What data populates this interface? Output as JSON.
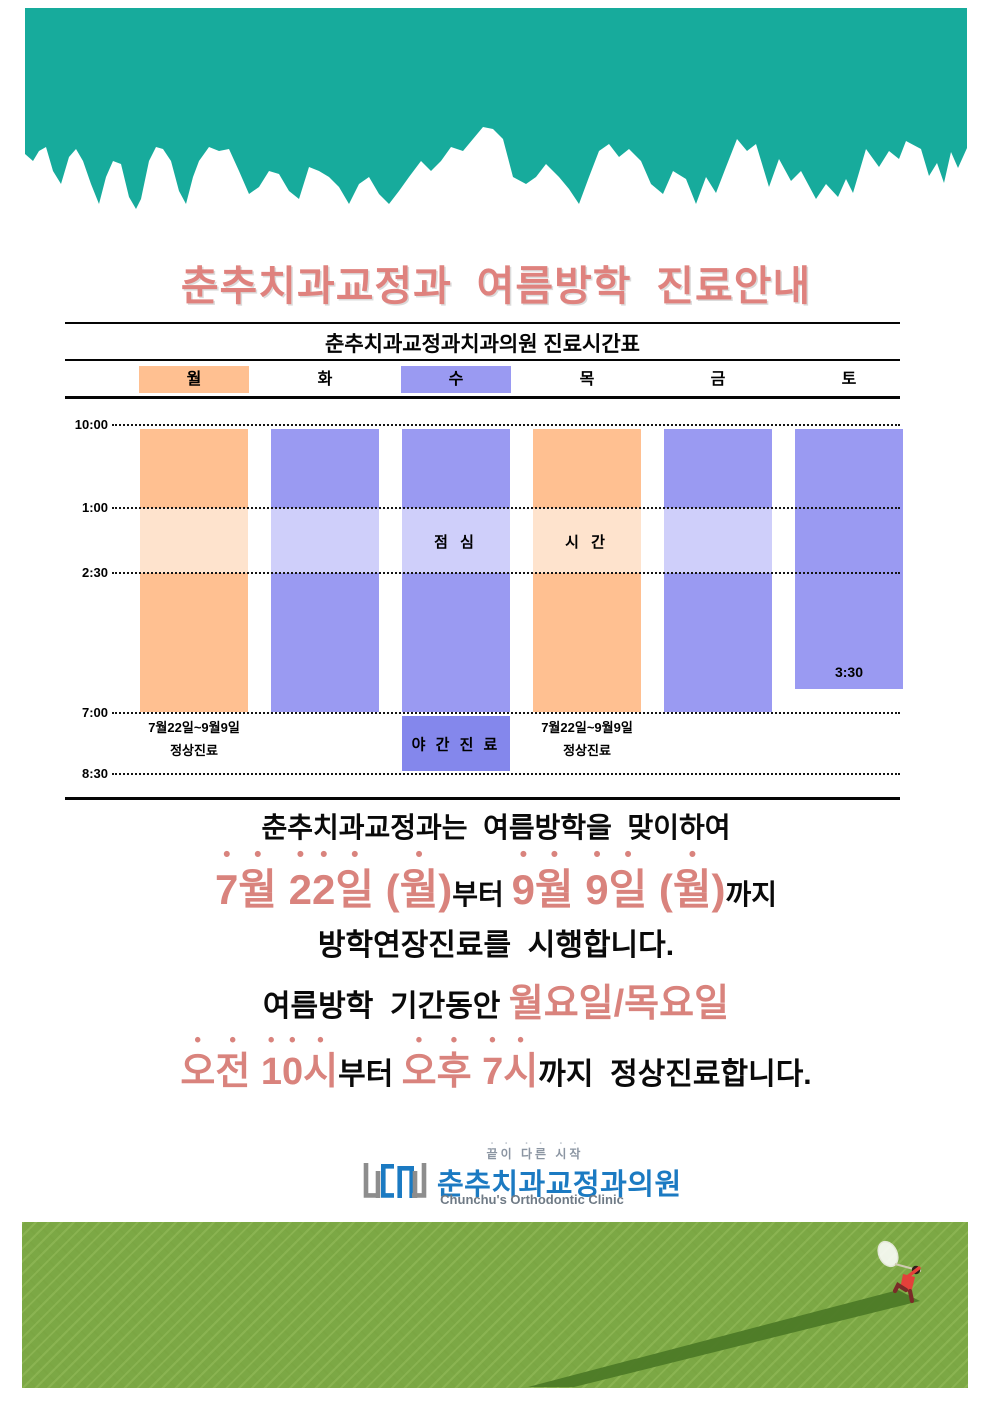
{
  "page": {
    "main_title": "춘추치과교정과  여름방학  진료안내"
  },
  "schedule": {
    "table_title": "춘추치과교정과치과의원 진료시간표",
    "time_labels": [
      "10:00",
      "1:00",
      "2:30",
      "7:00",
      "8:30"
    ],
    "lunch_label_left": "점  심",
    "lunch_label_right": "시  간",
    "columns": [
      {
        "day": "월",
        "theme": "orange",
        "highlight": "orange",
        "segments": [
          {
            "from": "10:00",
            "to": "1:00",
            "type": "work"
          },
          {
            "from": "1:00",
            "to": "2:30",
            "type": "lunch"
          },
          {
            "from": "2:30",
            "to": "7:00",
            "type": "work"
          }
        ],
        "note": [
          "7월22일~9월9일",
          "정상진료"
        ]
      },
      {
        "day": "화",
        "theme": "purple",
        "highlight": "",
        "segments": [
          {
            "from": "10:00",
            "to": "1:00",
            "type": "work"
          },
          {
            "from": "1:00",
            "to": "2:30",
            "type": "lunch"
          },
          {
            "from": "2:30",
            "to": "7:00",
            "type": "work"
          }
        ]
      },
      {
        "day": "수",
        "theme": "purple",
        "highlight": "purple",
        "segments": [
          {
            "from": "10:00",
            "to": "1:00",
            "type": "work"
          },
          {
            "from": "1:00",
            "to": "2:30",
            "type": "lunch"
          },
          {
            "from": "2:30",
            "to": "7:00",
            "type": "work"
          },
          {
            "from": "7:00",
            "to": "8:30",
            "type": "night",
            "label": "야 간 진 료"
          }
        ]
      },
      {
        "day": "목",
        "theme": "orange",
        "highlight": "",
        "segments": [
          {
            "from": "10:00",
            "to": "1:00",
            "type": "work"
          },
          {
            "from": "1:00",
            "to": "2:30",
            "type": "lunch"
          },
          {
            "from": "2:30",
            "to": "7:00",
            "type": "work"
          }
        ],
        "note": [
          "7월22일~9월9일",
          "정상진료"
        ]
      },
      {
        "day": "금",
        "theme": "purple",
        "highlight": "",
        "segments": [
          {
            "from": "10:00",
            "to": "1:00",
            "type": "work"
          },
          {
            "from": "1:00",
            "to": "2:30",
            "type": "lunch"
          },
          {
            "from": "2:30",
            "to": "7:00",
            "type": "work"
          }
        ]
      },
      {
        "day": "토",
        "theme": "purple",
        "highlight": "",
        "segments": [
          {
            "from": "10:00",
            "to": "3:30",
            "type": "work",
            "end_label": "3:30"
          }
        ]
      }
    ]
  },
  "announcement": {
    "line1": "춘추치과교정과는  여름방학을  맞이하여",
    "line2_pink1": "7월 22일 (월)",
    "line2_black1": "부터 ",
    "line2_pink2": "9월 9일 (월)",
    "line2_black2": "까지",
    "line3": "방학연장진료를  시행합니다.",
    "line4_black": "여름방학  기간동안 ",
    "line4_pink": "월요일/목요일",
    "line5_pink1": "오전 10시",
    "line5_black1": "부터 ",
    "line5_pink2": "오후 7시",
    "line5_black2": "까지  정상진료합니다."
  },
  "footer": {
    "slogan": "끝이 다른 시작",
    "clinic_name_ko": "춘추치과교정과의원",
    "clinic_name_en": "Chunchu's Orthodontic Clinic"
  },
  "colors": {
    "teal_banner": "#17ab9c",
    "orange_bar": "#ffc091",
    "orange_lunch": "#fee3cd",
    "purple_bar": "#9a9af2",
    "purple_lunch": "#cfcffa",
    "purple_night": "#8487ec",
    "accent_pink": "#d9837d",
    "title_pink": "#df827e",
    "logo_blue": "#1b7ac2",
    "grass_green": "#7ca845",
    "grass_shadow": "#4d7a27"
  }
}
